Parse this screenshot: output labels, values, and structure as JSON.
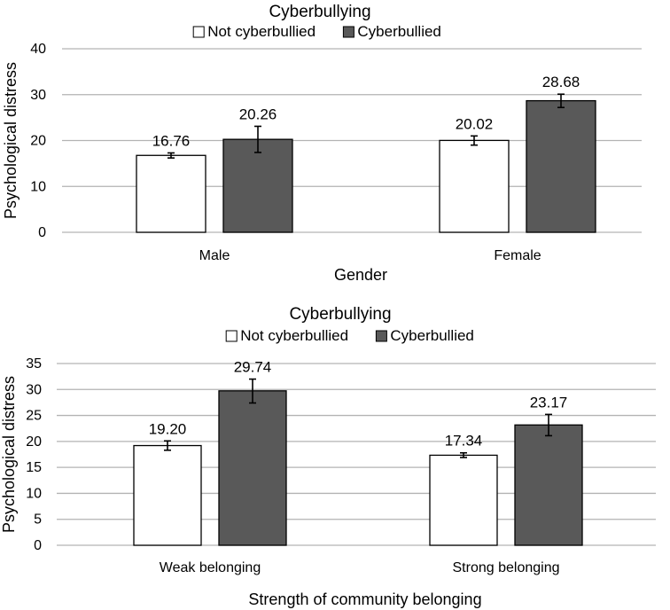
{
  "chart_data": [
    {
      "type": "bar",
      "title": "Cyberbullying",
      "xlabel": "Gender",
      "ylabel": "Psychological distress",
      "ylim": [
        0,
        40
      ],
      "yticks": [
        0,
        10,
        20,
        30,
        40
      ],
      "ytick_labels": [
        "0",
        "10",
        "20",
        "30",
        "40"
      ],
      "categories": [
        "Male",
        "Female"
      ],
      "legend_position": "top-center",
      "series": [
        {
          "name": "Not cyberbullied",
          "color": "#ffffff",
          "values": [
            16.76,
            20.02
          ],
          "value_labels": [
            "16.76",
            "20.02"
          ],
          "error_low": [
            16.2,
            19.0
          ],
          "error_high": [
            17.3,
            21.0
          ]
        },
        {
          "name": "Cyberbullied",
          "color": "#595959",
          "values": [
            20.26,
            28.68
          ],
          "value_labels": [
            "20.26",
            "28.68"
          ],
          "error_low": [
            17.4,
            27.2
          ],
          "error_high": [
            23.1,
            30.1
          ]
        }
      ]
    },
    {
      "type": "bar",
      "title": "Cyberbullying",
      "xlabel": "Strength of community belonging",
      "ylabel": "Psychological distress",
      "ylim": [
        0,
        35
      ],
      "yticks": [
        0,
        5,
        10,
        15,
        20,
        25,
        30,
        35
      ],
      "ytick_labels": [
        "0",
        "5",
        "10",
        "15",
        "20",
        "25",
        "30",
        "35"
      ],
      "categories": [
        "Weak belonging",
        "Strong belonging"
      ],
      "legend_position": "top-center",
      "series": [
        {
          "name": "Not cyberbullied",
          "color": "#ffffff",
          "values": [
            19.2,
            17.34
          ],
          "value_labels": [
            "19.20",
            "17.34"
          ],
          "error_low": [
            18.3,
            16.9
          ],
          "error_high": [
            20.1,
            17.8
          ]
        },
        {
          "name": "Cyberbullied",
          "color": "#595959",
          "values": [
            29.74,
            23.17
          ],
          "value_labels": [
            "29.74",
            "23.17"
          ],
          "error_low": [
            27.4,
            21.1
          ],
          "error_high": [
            32.0,
            25.2
          ]
        }
      ]
    }
  ]
}
